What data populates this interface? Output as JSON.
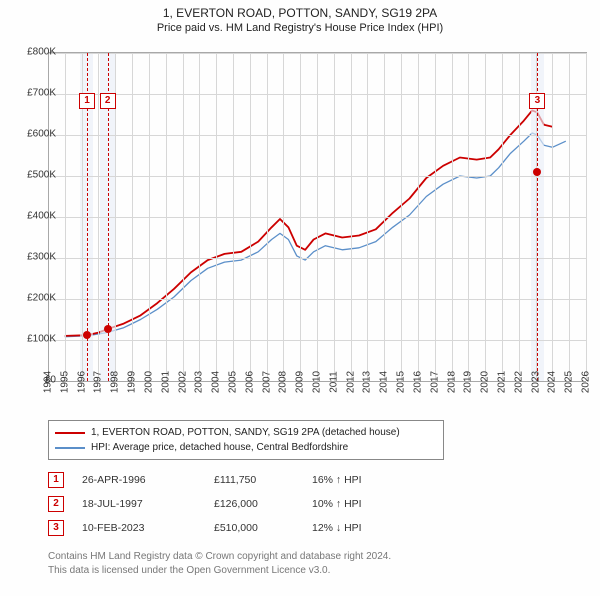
{
  "title": "1, EVERTON ROAD, POTTON, SANDY, SG19 2PA",
  "subtitle": "Price paid vs. HM Land Registry's House Price Index (HPI)",
  "chart": {
    "type": "line",
    "xlim": [
      1994,
      2026
    ],
    "ylim": [
      0,
      800000
    ],
    "ytick_step": 100000,
    "ytick_labels": [
      "£0",
      "£100K",
      "£200K",
      "£300K",
      "£400K",
      "£500K",
      "£600K",
      "£700K",
      "£800K"
    ],
    "xticks": [
      1994,
      1995,
      1996,
      1997,
      1998,
      1999,
      2000,
      2001,
      2002,
      2003,
      2004,
      2005,
      2006,
      2007,
      2008,
      2009,
      2010,
      2011,
      2012,
      2013,
      2014,
      2015,
      2016,
      2017,
      2018,
      2019,
      2020,
      2021,
      2022,
      2023,
      2024,
      2025,
      2026
    ],
    "background_color": "#fefefe",
    "grid_color": "#d7d7d7",
    "highlight_band_color": "#e9eef7",
    "marker_dash_color": "#cc0000",
    "series": [
      {
        "name": "property",
        "label": "1, EVERTON ROAD, POTTON, SANDY, SG19 2PA (detached house)",
        "color": "#cc0000",
        "width": 1.8,
        "points": [
          [
            1995.0,
            110000
          ],
          [
            1996.3,
            111750
          ],
          [
            1997.0,
            118000
          ],
          [
            1997.5,
            126000
          ],
          [
            1998.5,
            140000
          ],
          [
            1999.5,
            160000
          ],
          [
            2000.5,
            190000
          ],
          [
            2001.5,
            225000
          ],
          [
            2002.5,
            265000
          ],
          [
            2003.5,
            295000
          ],
          [
            2004.5,
            310000
          ],
          [
            2005.5,
            315000
          ],
          [
            2006.5,
            340000
          ],
          [
            2007.3,
            375000
          ],
          [
            2007.8,
            395000
          ],
          [
            2008.3,
            375000
          ],
          [
            2008.8,
            330000
          ],
          [
            2009.3,
            320000
          ],
          [
            2009.8,
            345000
          ],
          [
            2010.5,
            360000
          ],
          [
            2011.5,
            350000
          ],
          [
            2012.5,
            355000
          ],
          [
            2013.5,
            370000
          ],
          [
            2014.5,
            410000
          ],
          [
            2015.5,
            445000
          ],
          [
            2016.5,
            495000
          ],
          [
            2017.5,
            525000
          ],
          [
            2018.5,
            545000
          ],
          [
            2019.5,
            540000
          ],
          [
            2020.3,
            545000
          ],
          [
            2020.8,
            565000
          ],
          [
            2021.5,
            600000
          ],
          [
            2022.3,
            635000
          ],
          [
            2022.8,
            660000
          ],
          [
            2023.1,
            655000
          ],
          [
            2023.5,
            625000
          ],
          [
            2024.0,
            620000
          ]
        ]
      },
      {
        "name": "hpi",
        "label": "HPI: Average price, detached house, Central Bedfordshire",
        "color": "#5b8fc9",
        "width": 1.3,
        "points": [
          [
            1995.0,
            108000
          ],
          [
            1996.3,
            110000
          ],
          [
            1997.5,
            118000
          ],
          [
            1998.5,
            130000
          ],
          [
            1999.5,
            150000
          ],
          [
            2000.5,
            175000
          ],
          [
            2001.5,
            205000
          ],
          [
            2002.5,
            245000
          ],
          [
            2003.5,
            275000
          ],
          [
            2004.5,
            290000
          ],
          [
            2005.5,
            295000
          ],
          [
            2006.5,
            315000
          ],
          [
            2007.3,
            345000
          ],
          [
            2007.8,
            360000
          ],
          [
            2008.3,
            345000
          ],
          [
            2008.8,
            305000
          ],
          [
            2009.3,
            295000
          ],
          [
            2009.8,
            315000
          ],
          [
            2010.5,
            330000
          ],
          [
            2011.5,
            320000
          ],
          [
            2012.5,
            325000
          ],
          [
            2013.5,
            340000
          ],
          [
            2014.5,
            375000
          ],
          [
            2015.5,
            405000
          ],
          [
            2016.5,
            450000
          ],
          [
            2017.5,
            480000
          ],
          [
            2018.5,
            500000
          ],
          [
            2019.5,
            495000
          ],
          [
            2020.3,
            500000
          ],
          [
            2020.8,
            520000
          ],
          [
            2021.5,
            555000
          ],
          [
            2022.3,
            585000
          ],
          [
            2022.8,
            605000
          ],
          [
            2023.1,
            600000
          ],
          [
            2023.5,
            575000
          ],
          [
            2024.0,
            570000
          ],
          [
            2024.8,
            585000
          ]
        ]
      }
    ],
    "data_points": [
      {
        "x": 1996.32,
        "y": 111750,
        "color": "#cc0000"
      },
      {
        "x": 1997.55,
        "y": 126000,
        "color": "#cc0000"
      },
      {
        "x": 2023.11,
        "y": 510000,
        "color": "#cc0000"
      }
    ],
    "highlight_bands": [
      {
        "from": 1995.9,
        "to": 1996.7
      },
      {
        "from": 1997.1,
        "to": 1998.0
      },
      {
        "from": 2022.7,
        "to": 2023.5
      }
    ],
    "markers": [
      {
        "n": "1",
        "x": 1996.32,
        "box_y": 702000
      },
      {
        "n": "2",
        "x": 1997.55,
        "box_y": 702000
      },
      {
        "n": "3",
        "x": 2023.11,
        "box_y": 702000
      }
    ]
  },
  "legend": [
    {
      "color": "#cc0000",
      "label_path": "chart.series.0.label"
    },
    {
      "color": "#5b8fc9",
      "label_path": "chart.series.1.label"
    }
  ],
  "transactions": [
    {
      "n": "1",
      "date": "26-APR-1996",
      "price": "£111,750",
      "diff": "16% ↑ HPI",
      "arrow": "↑"
    },
    {
      "n": "2",
      "date": "18-JUL-1997",
      "price": "£126,000",
      "diff": "10% ↑ HPI",
      "arrow": "↑"
    },
    {
      "n": "3",
      "date": "10-FEB-2023",
      "price": "£510,000",
      "diff": "12% ↓ HPI",
      "arrow": "↓"
    }
  ],
  "footer_line1": "Contains HM Land Registry data © Crown copyright and database right 2024.",
  "footer_line2": "This data is licensed under the Open Government Licence v3.0."
}
